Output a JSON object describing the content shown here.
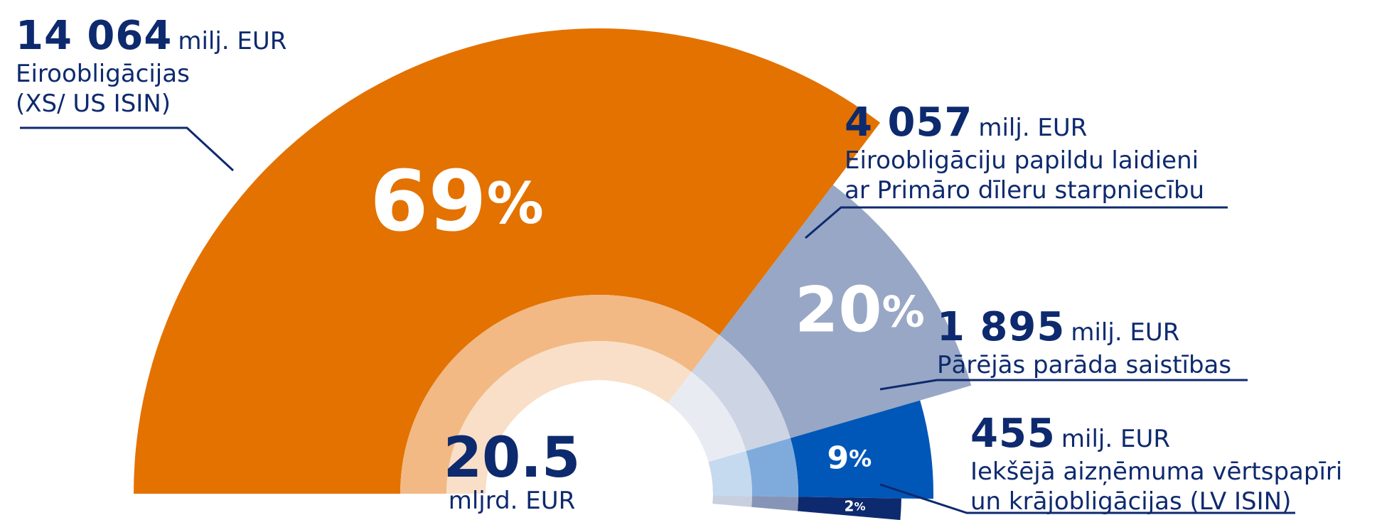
{
  "chart_data": {
    "type": "pie",
    "center_value": "20.5",
    "center_unit": "mljrd. EUR",
    "segments": [
      {
        "value": 14064,
        "value_label": "14 064",
        "unit": "milj. EUR",
        "description": [
          "Eiroobligācijas",
          "(XS/ US ISIN)"
        ],
        "percent": 69,
        "percent_label": "69%",
        "color": "#e37200",
        "inner_color": "#f2b984"
      },
      {
        "value": 4057,
        "value_label": "4 057",
        "unit": "milj. EUR",
        "description": [
          "Eiroobligāciju papildu laidieni",
          "ar Primāro dīleru starpniecību"
        ],
        "percent": 20,
        "percent_label": "20%",
        "color": "#98a7c5",
        "inner_color": "#cdd4e3"
      },
      {
        "value": 1895,
        "value_label": "1 895",
        "unit": "milj. EUR",
        "description": [
          "Pārējās parāda saistības"
        ],
        "percent": 9,
        "percent_label": "9%",
        "color": "#0157b8",
        "inner_color": "#7fabdc"
      },
      {
        "value": 455,
        "value_label": "455",
        "unit": "milj. EUR",
        "description": [
          "Iekšējā aizņēmuma vērtspapīri",
          "un krājobligācijas (LV ISIN)"
        ],
        "percent": 2,
        "percent_label": "2%",
        "color": "#0e2a6e",
        "inner_color": "#8695b7"
      }
    ]
  }
}
